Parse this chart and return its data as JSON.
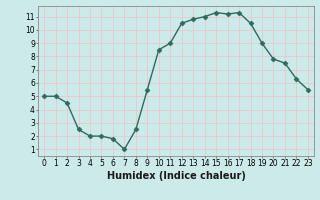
{
  "x": [
    0,
    1,
    2,
    3,
    4,
    5,
    6,
    7,
    8,
    9,
    10,
    11,
    12,
    13,
    14,
    15,
    16,
    17,
    18,
    19,
    20,
    21,
    22,
    23
  ],
  "y": [
    5,
    5,
    4.5,
    2.5,
    2,
    2,
    1.8,
    1,
    2.5,
    5.5,
    8.5,
    9,
    10.5,
    10.8,
    11,
    11.3,
    11.2,
    11.3,
    10.5,
    9,
    7.8,
    7.5,
    6.3,
    5.5
  ],
  "line_color": "#2d6b5e",
  "marker": "D",
  "markersize": 2.5,
  "linewidth": 1.0,
  "bg_color": "#cdeaea",
  "grid_color": "#e8c8c8",
  "xlabel": "Humidex (Indice chaleur)",
  "xlim": [
    -0.5,
    23.5
  ],
  "ylim": [
    0.5,
    11.8
  ],
  "yticks": [
    1,
    2,
    3,
    4,
    5,
    6,
    7,
    8,
    9,
    10,
    11
  ],
  "xticks": [
    0,
    1,
    2,
    3,
    4,
    5,
    6,
    7,
    8,
    9,
    10,
    11,
    12,
    13,
    14,
    15,
    16,
    17,
    18,
    19,
    20,
    21,
    22,
    23
  ],
  "tick_fontsize": 5.5,
  "xlabel_fontsize": 7.0,
  "spine_color": "#888888"
}
